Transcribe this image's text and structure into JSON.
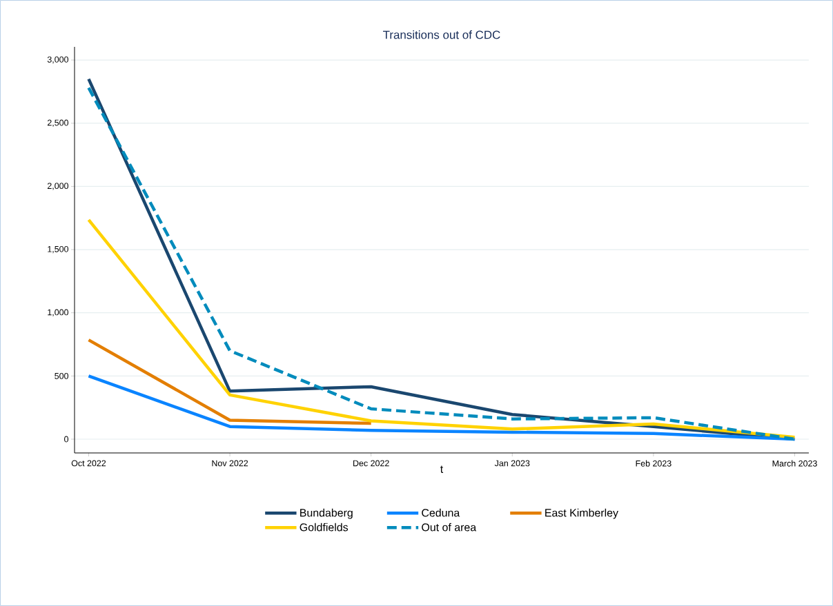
{
  "chart_data": {
    "type": "line",
    "title": "Transitions out of CDC",
    "xlabel": "t",
    "categories": [
      "Oct 2022",
      "Nov 2022",
      "Dec 2022",
      "Jan 2023",
      "Feb 2023",
      "March 2023"
    ],
    "series": [
      {
        "name": "Bundaberg",
        "color": "#1a476f",
        "values": [
          2850,
          380,
          415,
          195,
          100,
          0
        ]
      },
      {
        "name": "Ceduna",
        "color": "#0a84ff",
        "values": [
          500,
          100,
          70,
          55,
          45,
          0
        ]
      },
      {
        "name": "East Kimberley",
        "color": "#e37e00",
        "values": [
          785,
          150,
          125,
          null,
          null,
          null
        ]
      },
      {
        "name": "Goldfields",
        "color": "#ffd200",
        "values": [
          1735,
          350,
          145,
          80,
          120,
          15
        ]
      },
      {
        "name": "Out of area",
        "color": "#008bbc",
        "line_style": "dashed",
        "values": [
          2780,
          700,
          240,
          160,
          170,
          0
        ]
      }
    ],
    "ylim": [
      -109,
      3104
    ],
    "yticks": [
      {
        "value": 0,
        "label": "0"
      },
      {
        "value": 500,
        "label": "500"
      },
      {
        "value": 1000,
        "label": "1,000"
      },
      {
        "value": 1500,
        "label": "1,500"
      },
      {
        "value": 2000,
        "label": "2,000"
      },
      {
        "value": 2500,
        "label": "2,500"
      },
      {
        "value": 3000,
        "label": "3,000"
      }
    ],
    "grid": "y",
    "legend": "bottom",
    "marker": "none"
  }
}
